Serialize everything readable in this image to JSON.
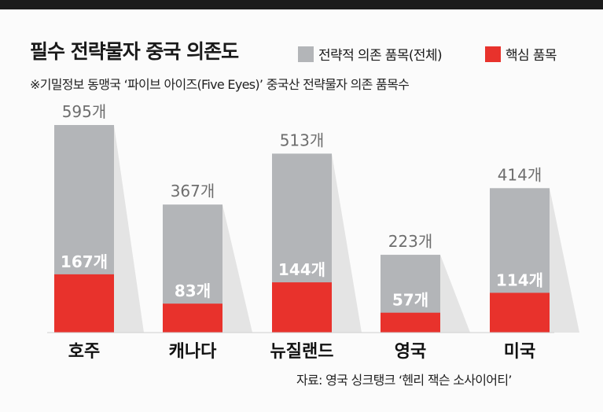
{
  "header": {
    "title": "필수 전략물자 중국 의존도",
    "subtitle": "※기밀정보 동맹국 ‘파이브 아이즈(Five Eyes)’ 중국산 전략물자 의존 품목수",
    "source": "자료: 영국 싱크탱크 ‘헨리 잭슨 소사이어티’"
  },
  "legend": {
    "total": "전략적 의존 품목(전체)",
    "core": "핵심 품목"
  },
  "colors": {
    "total": "#b3b5b8",
    "core": "#e8322c",
    "shadow": "#e4e4e4",
    "top_bar": "#1b1b1b"
  },
  "chart_data": {
    "type": "bar",
    "categories": [
      "호주",
      "캐나다",
      "뉴질랜드",
      "영국",
      "미국"
    ],
    "series": [
      {
        "name": "전략적 의존 품목(전체)",
        "values": [
          595,
          367,
          513,
          223,
          414
        ],
        "labels": [
          "595개",
          "367개",
          "513개",
          "223개",
          "414개"
        ]
      },
      {
        "name": "핵심 품목",
        "values": [
          167,
          83,
          144,
          57,
          114
        ],
        "labels": [
          "167개",
          "83개",
          "144개",
          "57개",
          "114개"
        ]
      }
    ]
  }
}
